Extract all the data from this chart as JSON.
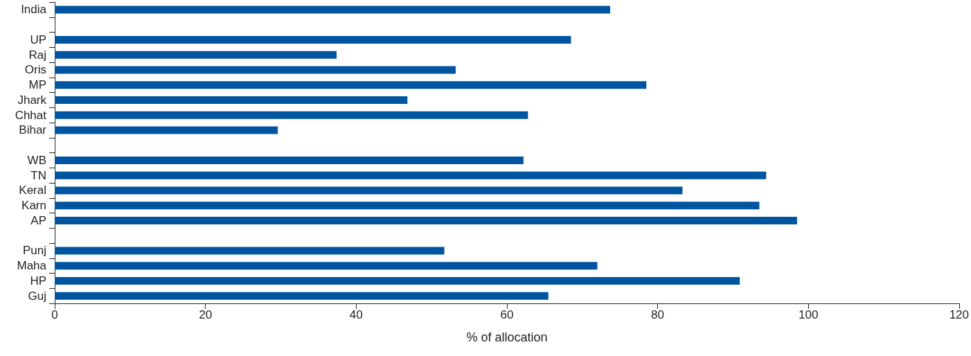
{
  "chart_data": {
    "type": "bar",
    "orientation": "horizontal",
    "xlabel": "% of allocation",
    "categories": [
      "India",
      null,
      "UP",
      "Raj",
      "Oris",
      "MP",
      "Jhark",
      "Chhat",
      "Bihar",
      null,
      "WB",
      "TN",
      "Keral",
      "Karn",
      "AP",
      null,
      "Punj",
      "Maha",
      "HP",
      "Guj"
    ],
    "values": [
      73.7,
      null,
      68.5,
      37.4,
      53.2,
      78.5,
      46.8,
      62.8,
      29.6,
      null,
      62.2,
      94.4,
      83.3,
      93.5,
      98.5,
      null,
      51.7,
      72.0,
      90.9,
      65.5
    ],
    "color": "#0055a0",
    "xlim": [
      0,
      120
    ],
    "xticks": [
      0,
      20,
      40,
      60,
      80,
      100,
      120
    ],
    "grid": false
  }
}
